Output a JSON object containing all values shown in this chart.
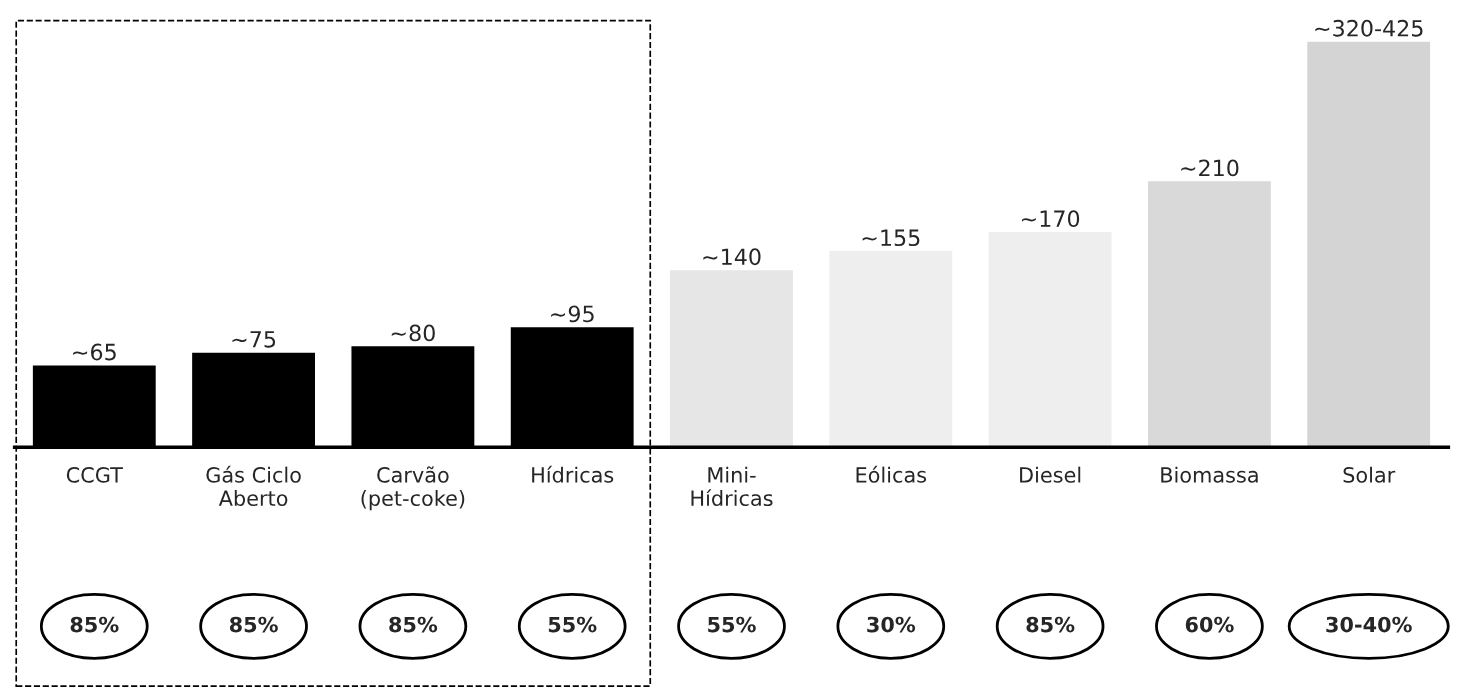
{
  "chart_data": {
    "type": "bar",
    "categories": [
      "CCGT",
      "Gás Ciclo\nAberto",
      "Carvão\n(pet-coke)",
      "Hídricas",
      "Mini-\nHídricas",
      "Eólicas",
      "Diesel",
      "Biomassa",
      "Solar"
    ],
    "values": [
      65,
      75,
      80,
      95,
      140,
      155,
      170,
      210,
      320
    ],
    "colors": [
      "#000000",
      "#000000",
      "#000000",
      "#000000",
      "#e6e6e6",
      "#eeeeee",
      "#eeeeee",
      "#d9d9d9",
      "#d4d4d4"
    ],
    "value_labels": [
      "~65",
      "~75",
      "~80",
      "~95",
      "~140",
      "~155",
      "~170",
      "~210",
      "~320-425"
    ],
    "tick_labels": "x",
    "grid": false,
    "legend": false,
    "annotations": [
      "85%",
      "85%",
      "85%",
      "55%",
      "55%",
      "30%",
      "85%",
      "60%",
      "30-40%"
    ]
  }
}
